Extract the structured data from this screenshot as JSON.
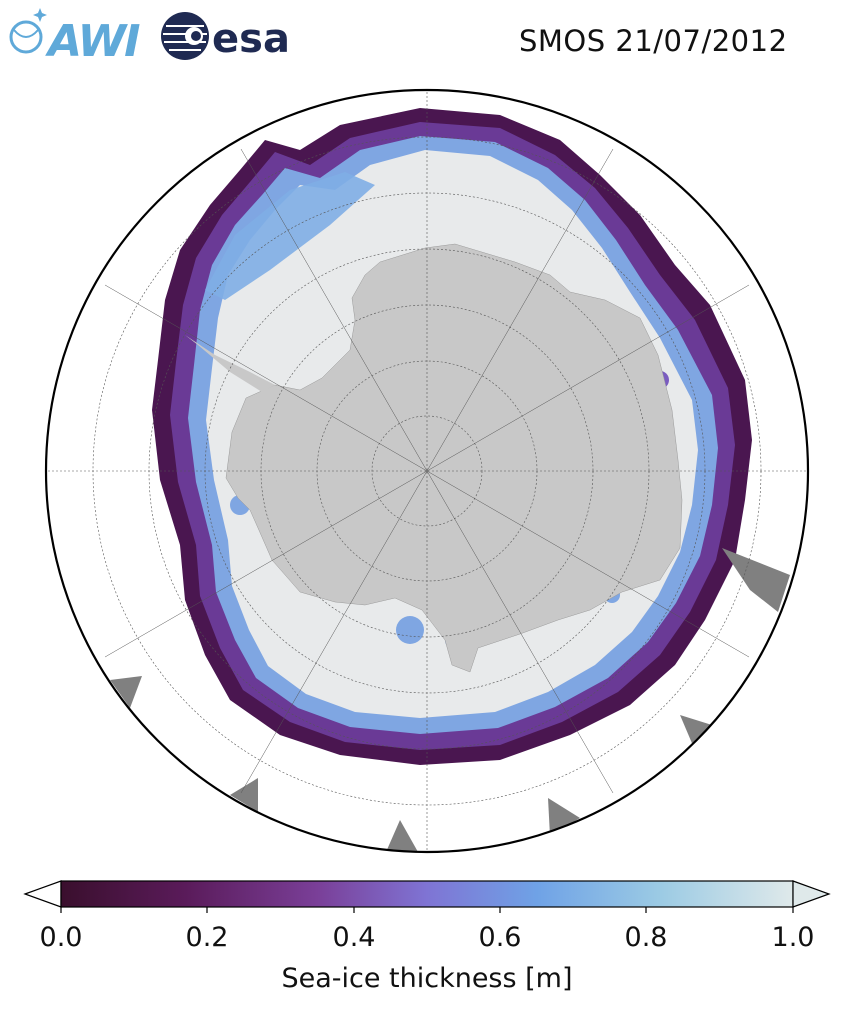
{
  "header": {
    "title": "SMOS 21/07/2012",
    "logo_awi_text": "AWI",
    "logo_esa_text": "esa"
  },
  "colorbar": {
    "label": "Sea-ice thickness [m]",
    "ticks": [
      "0.0",
      "0.2",
      "0.4",
      "0.6",
      "0.8",
      "1.0"
    ],
    "tick_values": [
      0.0,
      0.2,
      0.4,
      0.6,
      0.8,
      1.0
    ],
    "range": [
      0.0,
      1.0
    ],
    "extend": "both",
    "colormap": [
      "#3a0f2d",
      "#5a1b5a",
      "#7a3f98",
      "#7f74d4",
      "#6fa2e6",
      "#9ccbe4",
      "#dfe9ea"
    ]
  },
  "map": {
    "projection": "south polar stereographic",
    "colors": {
      "antarctica_land": "#c8c8c8",
      "other_land": "#808080",
      "thick_ice": "#e8eaeb",
      "ocean": "#ffffff",
      "graticule": "#555555",
      "frame": "#000000"
    }
  }
}
